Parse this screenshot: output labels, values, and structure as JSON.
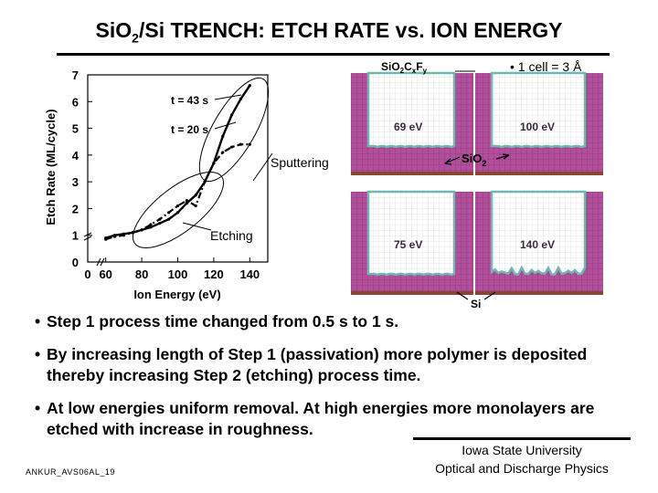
{
  "title_parts": {
    "a": "Si",
    "b": "O",
    "sub": "2",
    "c": "/Si TRENCH: ETCH RATE vs. ION ENERGY"
  },
  "chart_data": {
    "type": "line",
    "xlabel": "Ion Energy (eV)",
    "ylabel": "Etch Rate (ML/cycle)",
    "xlim": [
      50,
      150
    ],
    "ylim": [
      0,
      7
    ],
    "xticks": [
      "0",
      "60",
      "80",
      "100",
      "120",
      "140"
    ],
    "yticks": [
      "0",
      "1",
      "2",
      "3",
      "4",
      "5",
      "6",
      "7"
    ],
    "grid": false,
    "series": [
      {
        "name": "t = 43 s",
        "style": "solid",
        "x": [
          60,
          65,
          70,
          75,
          80,
          85,
          90,
          95,
          100,
          105,
          110,
          115,
          120,
          125,
          130,
          135,
          140
        ],
        "y": [
          0.9,
          1.0,
          1.05,
          1.1,
          1.2,
          1.3,
          1.45,
          1.6,
          1.85,
          2.2,
          2.5,
          3.0,
          3.7,
          4.7,
          5.5,
          6.1,
          6.6
        ]
      },
      {
        "name": "t = 20 s",
        "style": "dash-dot",
        "x": [
          60,
          65,
          70,
          75,
          80,
          85,
          90,
          95,
          100,
          105,
          110,
          115,
          120,
          125,
          130,
          135,
          140
        ],
        "y": [
          0.85,
          0.95,
          1.0,
          1.1,
          1.2,
          1.4,
          1.6,
          1.85,
          2.1,
          2.3,
          2.1,
          3.0,
          3.7,
          4.1,
          4.3,
          4.4,
          4.4
        ]
      }
    ],
    "annotations": {
      "sputtering": "Sputtering",
      "etching": "Etching"
    }
  },
  "panels": {
    "legend": "• 1 cell = 3 Å",
    "top_label": {
      "main": "SiO",
      "s1": "2",
      "c": "C",
      "s2": "x",
      "f": "F",
      "s3": "y"
    },
    "sio2_label": {
      "main": "SiO",
      "sub": "2"
    },
    "si_label": "Si",
    "energies": [
      "69 eV",
      "100 eV",
      "75 eV",
      "140 eV"
    ]
  },
  "bullets": [
    "Step 1 process time changed from 0.5 s to 1 s.",
    "By increasing length of Step 1 (passivation) more polymer is deposited thereby increasing Step 2 (etching) process time.",
    "At low energies uniform removal. At high energies more monolayers are etched with increase in roughness."
  ],
  "bullet_glyph": "•",
  "footer": {
    "line1": "Iowa State University",
    "line2": "Optical and Discharge Physics"
  },
  "slide_id": "ANKUR_AVS06AL_19",
  "colors": {
    "polymer": "#b34e9c",
    "trench": "#ffffff",
    "silicon": "#8a4432",
    "wall_teal": "#6fb7b0"
  }
}
